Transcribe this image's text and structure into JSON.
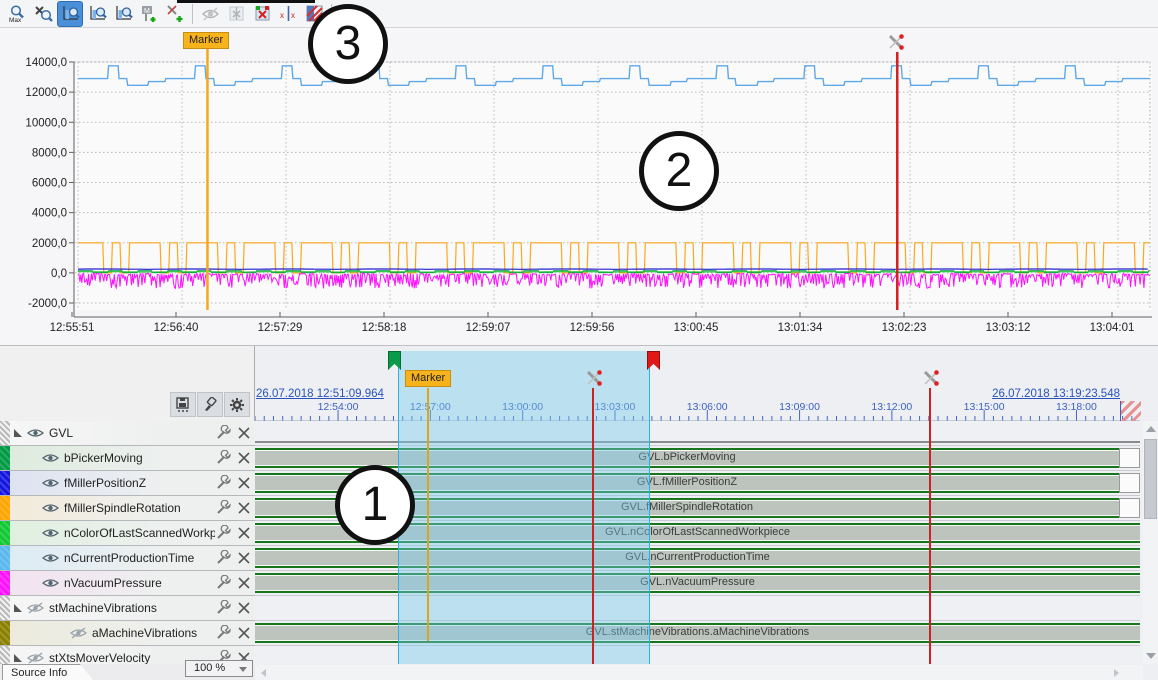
{
  "toolbar": {
    "buttons": [
      {
        "name": "zoom-max-button",
        "icon": "magnifier-max",
        "text": "Max",
        "active": false,
        "disabled": false
      },
      {
        "name": "zoom-undo-button",
        "icon": "magnifier-undo",
        "text": "",
        "active": false,
        "disabled": false
      },
      {
        "name": "zoom-mode-x-button",
        "icon": "chart-magnifier",
        "text": "",
        "active": true,
        "disabled": false
      },
      {
        "name": "zoom-mode-time-button",
        "icon": "chart-magnifier",
        "text": "",
        "active": false,
        "disabled": false
      },
      {
        "name": "zoom-mode-y-button",
        "icon": "chart-magnifier",
        "text": "",
        "active": false,
        "disabled": false
      },
      {
        "name": "add-marker-button",
        "icon": "marker-plus",
        "text": "M",
        "active": false,
        "disabled": false
      },
      {
        "name": "add-cursor-button",
        "icon": "cursor-plus",
        "text": "X",
        "active": false,
        "disabled": false
      },
      {
        "sep": true
      },
      {
        "name": "toggle-elements-button",
        "icon": "eye-slash",
        "text": "",
        "active": false,
        "disabled": true
      },
      {
        "name": "cursor-window-button",
        "icon": "window-cursor",
        "text": "",
        "active": false,
        "disabled": true
      },
      {
        "name": "cursor-window-red-button",
        "icon": "window-cursor-red",
        "text": "",
        "active": false,
        "disabled": false
      },
      {
        "name": "cursor-align-button",
        "icon": "cursor-pair",
        "text": "x x",
        "active": false,
        "disabled": false
      },
      {
        "name": "cut-data-button",
        "icon": "hatched-red",
        "text": "",
        "active": false,
        "disabled": false
      },
      {
        "sep": true
      },
      {
        "name": "dock-panel-button",
        "icon": "dock-arrow",
        "text": "",
        "active": false,
        "disabled": true
      }
    ]
  },
  "annotations": {
    "one": "1",
    "two": "2",
    "three": "3"
  },
  "chart_data": {
    "type": "line",
    "title": "",
    "x_tick_labels": [
      "12:55:51",
      "12:56:40",
      "12:57:29",
      "12:58:18",
      "12:59:07",
      "12:59:56",
      "13:00:45",
      "13:01:34",
      "13:02:23",
      "13:03:12",
      "13:04:01"
    ],
    "x_tick_interval_s": 49,
    "x_range_s": [
      0,
      505
    ],
    "y_tick_values": [
      14000,
      12000,
      10000,
      8000,
      6000,
      4000,
      2000,
      0,
      -2000
    ],
    "y_tick_labels": [
      "14000,0",
      "12000,0",
      "10000,0",
      "8000,0",
      "6000,0",
      "4000,0",
      "2000,0",
      "0,0",
      "-2000,0"
    ],
    "ylim": [
      -2500,
      14000
    ],
    "grid": true,
    "legend": false,
    "marker": {
      "label": "Marker",
      "time_s": 61,
      "color": "#F5A81C"
    },
    "cursor": {
      "time_s": 386,
      "color": "#D42020"
    },
    "series": [
      {
        "name": "GVL.nCurrentProductionTime",
        "color": "#5FA8E8",
        "width": 1.4,
        "gen": {
          "kind": "steps",
          "levels": [
            [
              12900,
              14
            ],
            [
              13750,
              5
            ],
            [
              12900,
              4
            ],
            [
              12450,
              10
            ],
            [
              12700,
              8
            ]
          ]
        }
      },
      {
        "name": "GVL.fMillerSpindleRotation",
        "color": "#FFA71A",
        "width": 1.2,
        "gen": {
          "kind": "steps",
          "levels": [
            [
              2000,
              12
            ],
            [
              0,
              4
            ],
            [
              2000,
              4
            ],
            [
              0,
              4
            ],
            [
              2000,
              3
            ]
          ]
        }
      },
      {
        "name": "GVL.fMillerPositionZ",
        "color": "#2222CC",
        "width": 1.2,
        "gen": {
          "kind": "const",
          "value": 250
        }
      },
      {
        "name": "GVL.bPickerMoving",
        "color": "#009A44",
        "width": 1,
        "gen": {
          "kind": "steps",
          "levels": [
            [
              140,
              7
            ],
            [
              15,
              7
            ]
          ]
        }
      },
      {
        "name": "GVL.nColorOfLastScannedWorkpiece",
        "color": "#22C832",
        "width": 1,
        "gen": {
          "kind": "const",
          "value": 70
        }
      },
      {
        "name": "GVL.nVacuumPressure",
        "color": "#FF10FF",
        "width": 1,
        "gen": {
          "kind": "noise",
          "base": -60,
          "spike_min": -1050,
          "spike_max": 40
        }
      }
    ]
  },
  "timeline": {
    "start_time": "26.07.2018 12:51:09.964",
    "end_time": "26.07.2018 13:19:23.548",
    "marker_label": "Marker",
    "tick_labels": [
      "12:54:00",
      "12:57:00",
      "13:00:00",
      "13:03:00",
      "13:06:00",
      "13:09:00",
      "13:12:00",
      "13:15:00",
      "13:18:00"
    ]
  },
  "channels": [
    {
      "label": "GVL",
      "group": true,
      "level": 0,
      "visible": true,
      "stripe": "pattern",
      "tint": "#f7f7f7",
      "track_label": "",
      "track_kind": "groupline"
    },
    {
      "label": "bPickerMoving",
      "group": false,
      "level": 1,
      "visible": true,
      "stripe": "#009A44",
      "tint": "#dcebdc",
      "track_label": "GVL.bPickerMoving",
      "track_kind": "bar",
      "track_w": 864
    },
    {
      "label": "fMillerPositionZ",
      "group": false,
      "level": 1,
      "visible": true,
      "stripe": "#1515E0",
      "tint": "#dde2f2",
      "track_label": "GVL.fMillerPositionZ",
      "track_kind": "bar",
      "track_w": 864
    },
    {
      "label": "fMillerSpindleRotation",
      "group": false,
      "level": 1,
      "visible": true,
      "stripe": "#FFA500",
      "tint": "#f3ead8",
      "track_label": "GVL.fMillerSpindleRotation",
      "track_kind": "bar",
      "track_w": 864
    },
    {
      "label": "nColorOfLastScannedWorkpiece",
      "group": false,
      "level": 1,
      "visible": true,
      "stripe": "#10C832",
      "tint": "#dff0df",
      "track_label": "GVL.nColorOfLastScannedWorkpiece",
      "track_kind": "bar",
      "track_w": 885
    },
    {
      "label": "nCurrentProductionTime",
      "group": false,
      "level": 1,
      "visible": true,
      "stripe": "#58B8F0",
      "tint": "#dcebf5",
      "track_label": "GVL.nCurrentProductionTime",
      "track_kind": "bar",
      "track_w": 885
    },
    {
      "label": "nVacuumPressure",
      "group": false,
      "level": 1,
      "visible": true,
      "stripe": "#FF10FF",
      "tint": "#f3e2f1",
      "track_label": "GVL.nVacuumPressure",
      "track_kind": "bar",
      "track_w": 885
    },
    {
      "label": "stMachineVibrations",
      "group": true,
      "level": 0,
      "visible": false,
      "stripe": "pattern",
      "tint": "#f7f7f7",
      "track_label": "",
      "track_kind": "none"
    },
    {
      "label": "aMachineVibrations",
      "group": false,
      "level": 2,
      "visible": false,
      "stripe": "#8A8000",
      "tint": "#eceadb",
      "track_label": "GVL.stMachineVibrations.aMachineVibrations",
      "track_kind": "bar",
      "track_w": 885
    },
    {
      "label": "stXtsMoverVelocity",
      "group": true,
      "level": 0,
      "visible": false,
      "stripe": "pattern",
      "tint": "#f7f7f7",
      "track_label": "",
      "track_kind": "none"
    }
  ],
  "panel_buttons": [
    {
      "name": "save-button",
      "icon": "save"
    },
    {
      "name": "style-brush-button",
      "icon": "brush"
    },
    {
      "name": "settings-button",
      "icon": "gear"
    }
  ],
  "footer": {
    "tab": "Source Info",
    "zoom": "100 %"
  }
}
